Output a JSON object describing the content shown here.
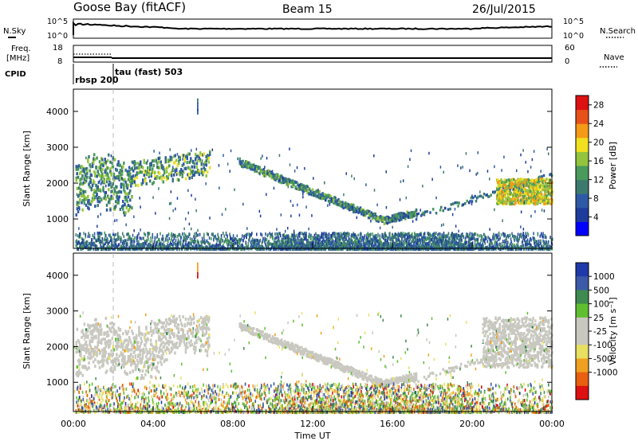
{
  "header": {
    "station": "Goose Bay (fitACF)",
    "beam": "Beam 15",
    "date": "26/Jul/2015"
  },
  "summary_panels": {
    "nsky_label": "N.Sky",
    "nsearch_label": "N.Search",
    "freq_label_line1": "Freq.",
    "freq_label_line2": "[MHz]",
    "nave_label": "Nave",
    "cpid_label": "CPID",
    "noise_ticks": [
      "10^5",
      "10^0"
    ],
    "freq_ticks": [
      "18",
      "8"
    ],
    "nave_ticks": [
      "60",
      "0"
    ],
    "cpid_entries": [
      {
        "label": "rbsp 200",
        "start_hour": 0.0
      },
      {
        "label": "tau (fast) 503",
        "start_hour": 2.0
      }
    ],
    "freq_mhz": {
      "before_hour_2": 10.5,
      "after_hour_2": 10.0,
      "high_dotted_before_2": 12.3
    }
  },
  "chart_data": [
    {
      "type": "heatmap",
      "name": "power",
      "ylabel": "Slant Range [km]",
      "xlabel": "",
      "xlim": [
        0,
        24
      ],
      "ylim": [
        180,
        4620
      ],
      "y_ticks": [
        "1000",
        "2000",
        "3000",
        "4000"
      ],
      "x_ticks": [
        "00:00",
        "04:00",
        "08:00",
        "12:00",
        "16:00",
        "20:00",
        "00:00"
      ],
      "colorbar": {
        "label": "Power [dB]",
        "tick_labels": [
          "4",
          "8",
          "12",
          "16",
          "20",
          "24",
          "28"
        ],
        "range": [
          0,
          30
        ],
        "colors": [
          "#0000ff",
          "#1e3c9c",
          "#2e5aa5",
          "#3d7a6e",
          "#4a9a5c",
          "#93c43d",
          "#f0e020",
          "#f59a18",
          "#e8501a",
          "#dd1111"
        ]
      },
      "features": [
        {
          "desc": "early band",
          "x": [
            0.1,
            2.9
          ],
          "range_km": [
            1200,
            2700
          ],
          "power_db": [
            6,
            20
          ]
        },
        {
          "desc": "low-range scatter",
          "x": [
            0,
            24
          ],
          "range_km": [
            200,
            500
          ],
          "power_db": [
            4,
            14
          ]
        },
        {
          "desc": "descending arc",
          "x": [
            8.2,
            17
          ],
          "range_km": [
            900,
            2600
          ],
          "power_db": [
            6,
            16
          ]
        },
        {
          "desc": "evening enhancement",
          "x": [
            21.5,
            24
          ],
          "range_km": [
            1400,
            2100
          ],
          "power_db": [
            14,
            24
          ]
        }
      ]
    },
    {
      "type": "heatmap",
      "name": "velocity",
      "ylabel": "Slant Range [km]",
      "xlabel": "Time UT",
      "xlim": [
        0,
        24
      ],
      "ylim": [
        180,
        4620
      ],
      "y_ticks": [
        "1000",
        "2000",
        "3000",
        "4000"
      ],
      "x_ticks": [
        "00:00",
        "04:00",
        "08:00",
        "12:00",
        "16:00",
        "20:00",
        "00:00"
      ],
      "colorbar": {
        "label": "Velocity [m s⁻¹]",
        "tick_labels": [
          "1000",
          "500",
          "100",
          "25",
          "-25",
          "-100",
          "-500",
          "-1000"
        ],
        "colors": [
          "#1f3aa8",
          "#3d5aa8",
          "#3f8a50",
          "#5fbf30",
          "#c8c8c0",
          "#c8c8c0",
          "#e8e060",
          "#f0a020",
          "#e86010",
          "#dd1111"
        ]
      },
      "features": [
        {
          "desc": "ground scatter band",
          "x": [
            0.1,
            6.8
          ],
          "range_km": [
            1200,
            2800
          ],
          "velocity_ms": [
            -25,
            25
          ]
        },
        {
          "desc": "descending arc",
          "x": [
            9,
            17
          ],
          "range_km": [
            900,
            2600
          ],
          "velocity_ms": [
            -25,
            25
          ]
        },
        {
          "desc": "evening band",
          "x": [
            20.5,
            24
          ],
          "range_km": [
            1500,
            2900
          ],
          "velocity_ms": [
            -25,
            25
          ]
        }
      ]
    }
  ]
}
